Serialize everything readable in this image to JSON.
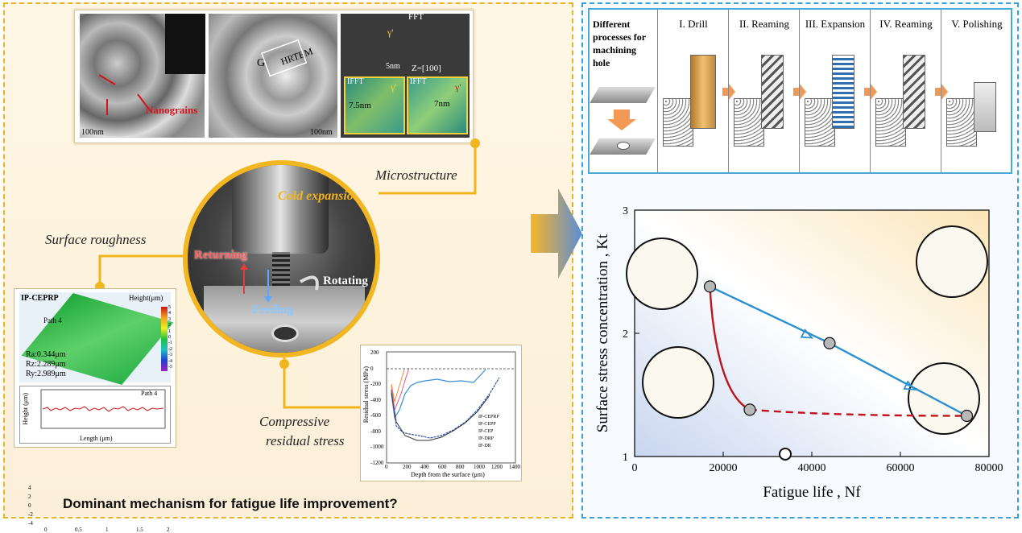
{
  "left_panel": {
    "question": "Dominant mechanism for fatigue life improvement?",
    "microstructure": {
      "label": "Microstructure",
      "scale1": "100nm",
      "scale2": "100nm",
      "scale3": "5nm",
      "nanograins": "Nanograins",
      "hrtem": "HRTEM",
      "g_label": "G",
      "fft": "FFT",
      "ifft1": "IFFT",
      "ifft2": "IFFT",
      "zone": "Z=[100]",
      "d1": "7.5nm",
      "d2": "7nm",
      "gamma1": "γ'",
      "gamma2": "γ'",
      "gamma3": "γ'"
    },
    "cold_expansion": {
      "label": "Cold expansion",
      "returning": "Returning",
      "rotating": "Rotating",
      "feeding": "Feeding"
    },
    "surface_roughness": {
      "label": "Surface roughness",
      "sample": "IP-CEPRP",
      "height_label": "Height(μm)",
      "path": "Path 4",
      "ra": "Ra:0.344μm",
      "rz": "Rz:2.289μm",
      "ry": "Ry:2.989μm",
      "profile_path": "Path 4",
      "y_label": "Height (μm)",
      "x_label": "Length (μm)",
      "y_ticks": [
        "4",
        "2",
        "0",
        "-2",
        "-4"
      ],
      "x_ticks": [
        "0",
        "0.5",
        "1",
        "1.5",
        "2"
      ],
      "colorbar_ticks": [
        "5",
        "4",
        "3",
        "2",
        "1",
        "0",
        "-1",
        "-2",
        "-3",
        "-4",
        "-5"
      ]
    },
    "residual_stress": {
      "label1": "Compressive",
      "label2": "residual stress",
      "y_label": "Residual stress (MPa)",
      "x_label": "Depth from the surface (μm)",
      "y_ticks": [
        "200",
        "0",
        "-200",
        "-400",
        "-600",
        "-800",
        "-1000",
        "-1200"
      ],
      "x_ticks": [
        "0",
        "200",
        "400",
        "600",
        "800",
        "1000",
        "1200",
        "1400"
      ],
      "legend": [
        "IP-CEPRP",
        "IP-CEPP",
        "IP-CEP",
        "IP-DRP",
        "IP-DR"
      ]
    }
  },
  "right_panel": {
    "processes": {
      "intro": "Different processes for machining hole",
      "steps": [
        "I. Drill",
        "II. Reaming",
        "III. Expansion",
        "IV. Reaming",
        "V. Polishing"
      ]
    },
    "chart_data": {
      "type": "line",
      "xlabel": "Fatigue life ,  Nf",
      "ylabel": "Surface stress concentration , Kt",
      "xlim": [
        0,
        80000
      ],
      "ylim": [
        1,
        3
      ],
      "x_ticks": [
        "0",
        "20000",
        "40000",
        "60000",
        "80000"
      ],
      "y_ticks": [
        "1",
        "2",
        "3"
      ],
      "series": [
        {
          "style": "blue-solid",
          "color": "#2b8fd0",
          "x": [
            17000,
            44000,
            75000
          ],
          "y": [
            2.38,
            1.92,
            1.33
          ]
        },
        {
          "style": "red-curve",
          "color": "#c0141c",
          "x": [
            17000,
            17400,
            19000,
            22000,
            26000
          ],
          "y": [
            2.38,
            2.1,
            1.7,
            1.45,
            1.38
          ]
        },
        {
          "style": "red-dashed",
          "color": "#c0141c",
          "x": [
            26000,
            45000,
            60000,
            75000
          ],
          "y": [
            1.38,
            1.33,
            1.33,
            1.33
          ]
        }
      ],
      "points": [
        {
          "x": 17000,
          "y": 2.38
        },
        {
          "x": 44000,
          "y": 1.92
        },
        {
          "x": 26000,
          "y": 1.38
        },
        {
          "x": 75000,
          "y": 1.33
        },
        {
          "x": 34000,
          "y": 1.02,
          "hollow": true
        }
      ]
    }
  }
}
